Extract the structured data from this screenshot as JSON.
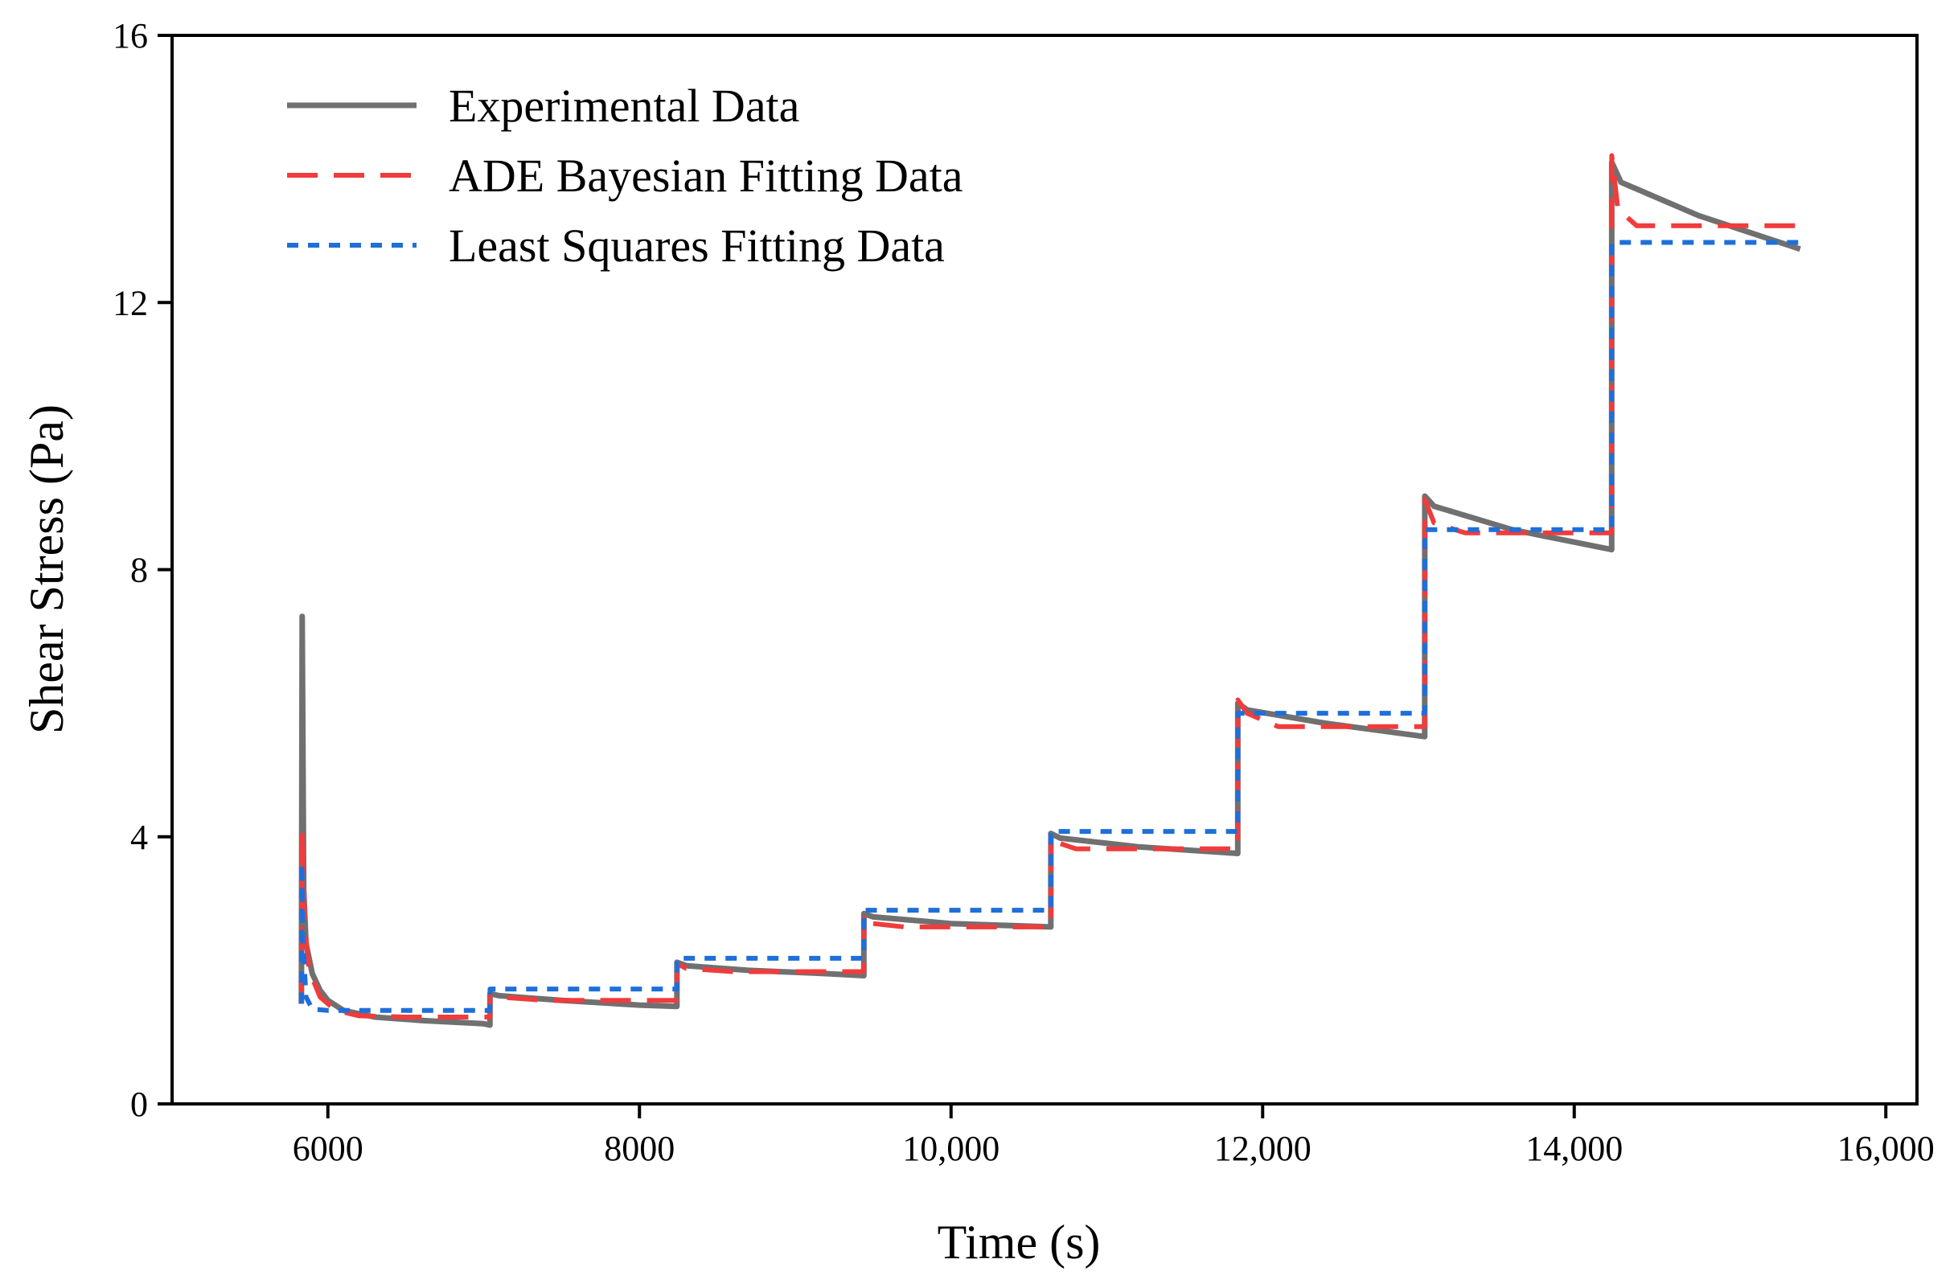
{
  "chart_data": {
    "type": "line",
    "title": "",
    "xlabel": "Time (s)",
    "ylabel": "Shear Stress (Pa)",
    "xlim": [
      5000,
      16200
    ],
    "ylim": [
      0,
      16
    ],
    "xticks": [
      6000,
      8000,
      10000,
      12000,
      14000,
      16000
    ],
    "xtick_labels": [
      "6000",
      "8000",
      "10,000",
      "12,000",
      "14,000",
      "16,000"
    ],
    "yticks": [
      0,
      4,
      8,
      12,
      16
    ],
    "ytick_labels": [
      "0",
      "4",
      "8",
      "12",
      "16"
    ],
    "legend_position": "top-left",
    "series": [
      {
        "name": "Experimental Data",
        "color": "#707070",
        "style": "solid",
        "x": [
          5830,
          5835,
          5845,
          5860,
          5900,
          5950,
          6000,
          6100,
          6300,
          6600,
          7000,
          7040,
          7041,
          7100,
          7500,
          8000,
          8240,
          8241,
          8300,
          8700,
          9200,
          9440,
          9441,
          9500,
          10000,
          10640,
          10641,
          10700,
          11200,
          11840,
          11841,
          11900,
          12400,
          13040,
          13041,
          13100,
          13600,
          14240,
          14241,
          14300,
          14800,
          15450
        ],
        "y": [
          1.5,
          7.3,
          3.2,
          2.4,
          1.95,
          1.7,
          1.55,
          1.4,
          1.3,
          1.25,
          1.2,
          1.18,
          1.65,
          1.62,
          1.55,
          1.48,
          1.46,
          2.12,
          2.07,
          2.0,
          1.95,
          1.92,
          2.85,
          2.8,
          2.7,
          2.65,
          4.05,
          3.98,
          3.85,
          3.75,
          6.0,
          5.9,
          5.7,
          5.5,
          9.1,
          8.95,
          8.6,
          8.3,
          14.1,
          13.8,
          13.3,
          12.8
        ]
      },
      {
        "name": "ADE Bayesian Fitting Data",
        "color": "#f03c3c",
        "style": "dashed",
        "x": [
          5830,
          5835,
          5850,
          5880,
          5950,
          6050,
          6200,
          6500,
          7040,
          7041,
          7100,
          7400,
          8240,
          8241,
          8300,
          8600,
          9440,
          9441,
          9500,
          9700,
          10640,
          10641,
          10700,
          10800,
          11840,
          11841,
          11900,
          12100,
          13040,
          13041,
          13100,
          13300,
          14240,
          14241,
          14280,
          14400,
          15450
        ],
        "y": [
          1.5,
          4.1,
          2.7,
          2.0,
          1.6,
          1.4,
          1.32,
          1.3,
          1.3,
          1.65,
          1.6,
          1.55,
          1.55,
          2.1,
          2.03,
          1.98,
          1.98,
          2.85,
          2.7,
          2.65,
          2.65,
          4.0,
          3.9,
          3.82,
          3.82,
          6.05,
          5.85,
          5.65,
          5.65,
          9.05,
          8.7,
          8.55,
          8.55,
          14.2,
          13.4,
          13.15,
          13.15
        ]
      },
      {
        "name": "Least Squares Fitting Data",
        "color": "#1e6fd9",
        "style": "dotted",
        "x": [
          5830,
          5833,
          5840,
          5860,
          5900,
          6000,
          7040,
          7041,
          8240,
          8241,
          9440,
          9441,
          10640,
          10641,
          11840,
          11841,
          13040,
          13041,
          14240,
          14241,
          15450
        ],
        "y": [
          1.5,
          3.6,
          2.4,
          1.6,
          1.42,
          1.4,
          1.4,
          1.72,
          1.72,
          2.18,
          2.18,
          2.9,
          2.9,
          4.08,
          4.08,
          5.85,
          5.85,
          8.6,
          8.6,
          12.9,
          12.9
        ]
      }
    ]
  }
}
